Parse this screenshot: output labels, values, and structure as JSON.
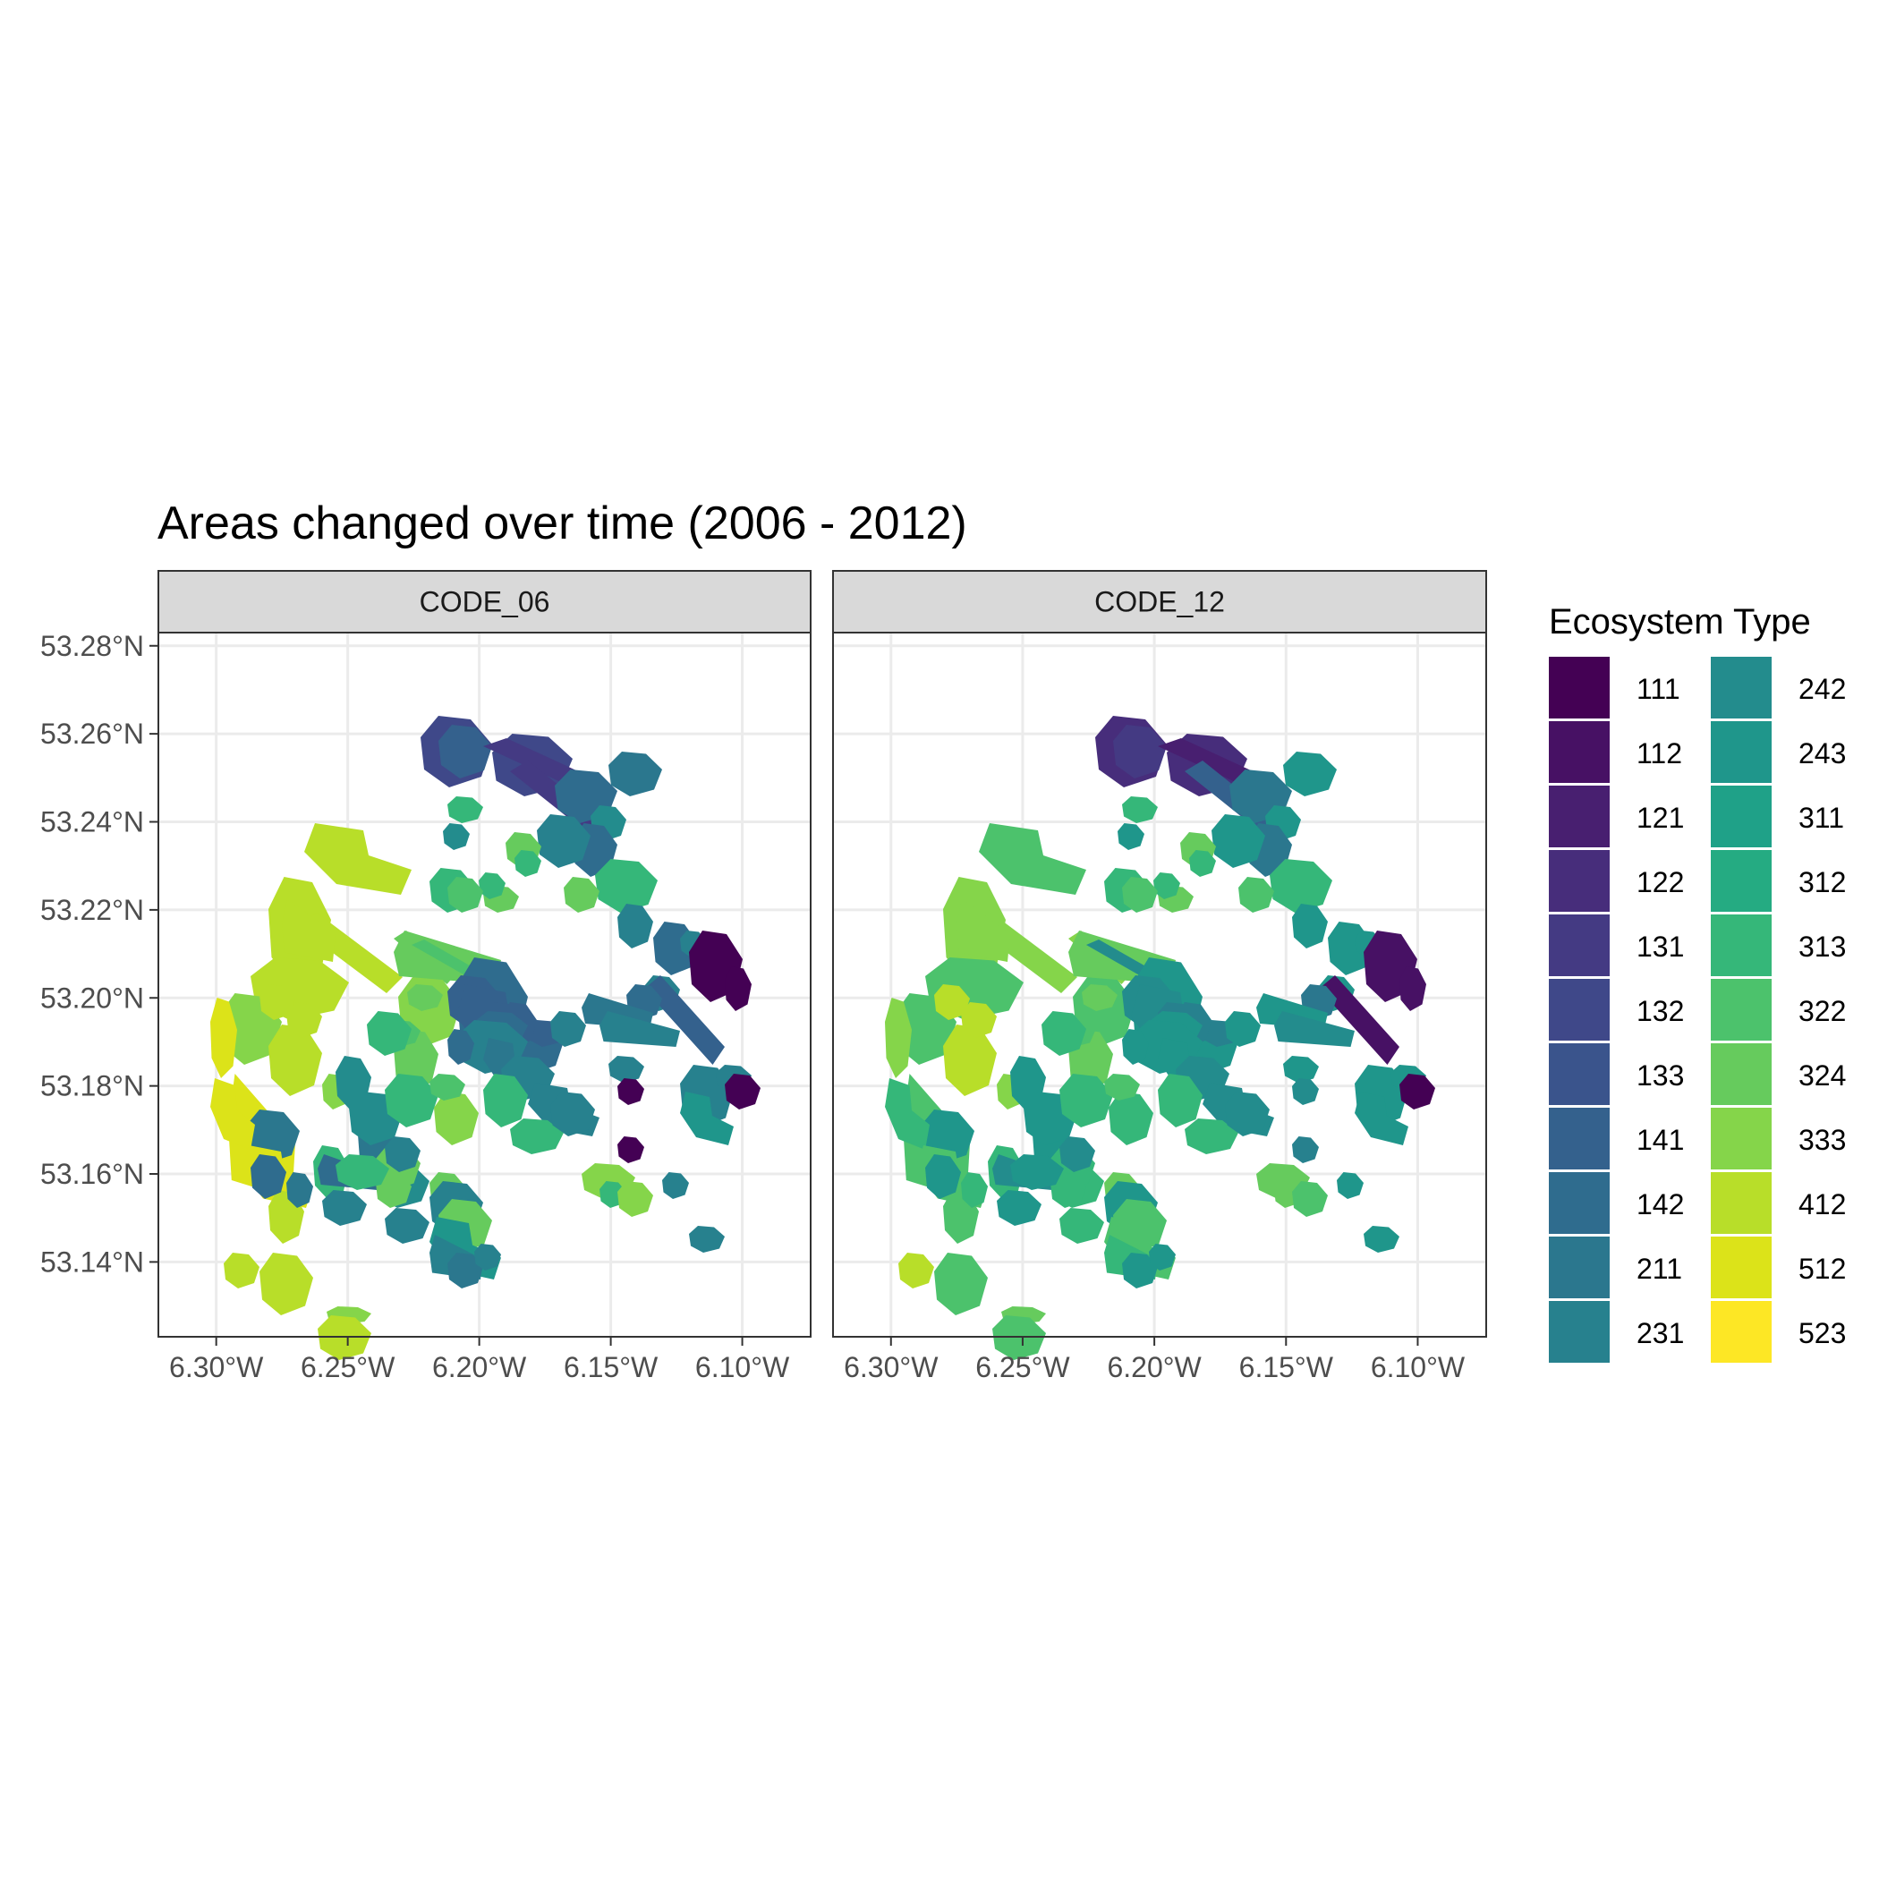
{
  "chart_data": {
    "type": "map",
    "title": "Areas changed over time (2006 - 2012)",
    "panels": [
      {
        "label": "CODE_06"
      },
      {
        "label": "CODE_12"
      }
    ],
    "x_axis": {
      "ticks": [
        -6.3,
        -6.25,
        -6.2,
        -6.15,
        -6.1
      ],
      "tick_labels": [
        "6.30°W",
        "6.25°W",
        "6.20°W",
        "6.15°W",
        "6.10°W"
      ],
      "range": [
        -6.322,
        -6.074
      ]
    },
    "y_axis": {
      "ticks": [
        53.14,
        53.16,
        53.18,
        53.2,
        53.22,
        53.24,
        53.26,
        53.28
      ],
      "tick_labels": [
        "53.14°N",
        "53.16°N",
        "53.18°N",
        "53.20°N",
        "53.22°N",
        "53.24°N",
        "53.26°N",
        "53.28°N"
      ],
      "range": [
        53.123,
        53.283
      ]
    },
    "grid": true,
    "legend": {
      "title": "Ecosystem Type",
      "placement": "right",
      "entries": [
        {
          "code": "111",
          "color": "#440154"
        },
        {
          "code": "112",
          "color": "#471164"
        },
        {
          "code": "121",
          "color": "#481F70"
        },
        {
          "code": "122",
          "color": "#472D7B"
        },
        {
          "code": "131",
          "color": "#443A83"
        },
        {
          "code": "132",
          "color": "#3F4889"
        },
        {
          "code": "133",
          "color": "#3A548C"
        },
        {
          "code": "141",
          "color": "#34618D"
        },
        {
          "code": "142",
          "color": "#2F6C8E"
        },
        {
          "code": "211",
          "color": "#2B778E"
        },
        {
          "code": "231",
          "color": "#27818E"
        },
        {
          "code": "242",
          "color": "#238C8D"
        },
        {
          "code": "243",
          "color": "#1F968B"
        },
        {
          "code": "311",
          "color": "#1FA188"
        },
        {
          "code": "312",
          "color": "#25AB82"
        },
        {
          "code": "313",
          "color": "#35B779"
        },
        {
          "code": "322",
          "color": "#4CC26C"
        },
        {
          "code": "324",
          "color": "#66CB5D"
        },
        {
          "code": "333",
          "color": "#85D54A"
        },
        {
          "code": "412",
          "color": "#B8DE29"
        },
        {
          "code": "512",
          "color": "#DCE319"
        },
        {
          "code": "523",
          "color": "#FDE725"
        }
      ]
    }
  }
}
